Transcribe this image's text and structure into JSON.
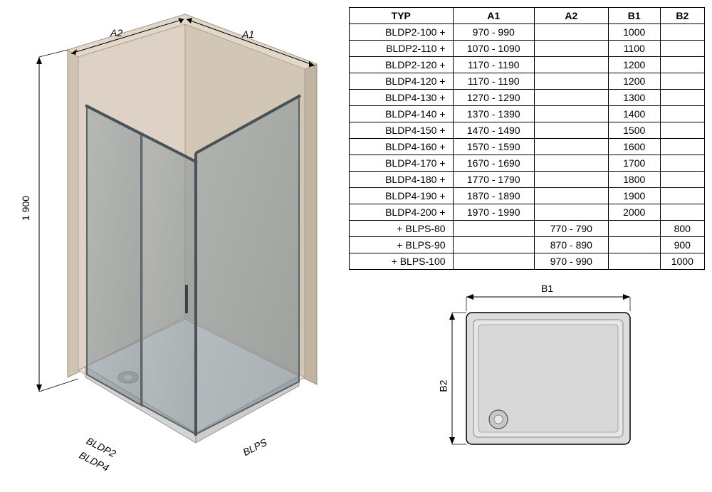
{
  "iso": {
    "height_label": "1 900",
    "top_left_dim": "A2",
    "top_right_dim": "A1",
    "bottom_left_label1": "BLDP2",
    "bottom_left_label2": "BLDP4",
    "bottom_right_label": "BLPS",
    "colors": {
      "wall_outer": "#c7b8a8",
      "wall_inner": "#ddd2c5",
      "floor": "#e8e0d4",
      "glass": "#7f8a8f",
      "glass_fill": "#b8c3c8",
      "frame": "#5a6266",
      "tray": "#e8e8e8",
      "dim_line": "#000000"
    }
  },
  "table": {
    "headers": [
      "TYP",
      "A1",
      "A2",
      "B1",
      "B2"
    ],
    "rows": [
      {
        "typ": "BLDP2-100 +",
        "a1": "970 - 990",
        "a2": "",
        "b1": "1000",
        "b2": ""
      },
      {
        "typ": "BLDP2-110 +",
        "a1": "1070 - 1090",
        "a2": "",
        "b1": "1100",
        "b2": ""
      },
      {
        "typ": "BLDP2-120 +",
        "a1": "1170 - 1190",
        "a2": "",
        "b1": "1200",
        "b2": ""
      },
      {
        "typ": "BLDP4-120 +",
        "a1": "1170 - 1190",
        "a2": "",
        "b1": "1200",
        "b2": ""
      },
      {
        "typ": "BLDP4-130 +",
        "a1": "1270 - 1290",
        "a2": "",
        "b1": "1300",
        "b2": ""
      },
      {
        "typ": "BLDP4-140 +",
        "a1": "1370 - 1390",
        "a2": "",
        "b1": "1400",
        "b2": ""
      },
      {
        "typ": "BLDP4-150 +",
        "a1": "1470 - 1490",
        "a2": "",
        "b1": "1500",
        "b2": ""
      },
      {
        "typ": "BLDP4-160 +",
        "a1": "1570 - 1590",
        "a2": "",
        "b1": "1600",
        "b2": ""
      },
      {
        "typ": "BLDP4-170 +",
        "a1": "1670 - 1690",
        "a2": "",
        "b1": "1700",
        "b2": ""
      },
      {
        "typ": "BLDP4-180 +",
        "a1": "1770 - 1790",
        "a2": "",
        "b1": "1800",
        "b2": ""
      },
      {
        "typ": "BLDP4-190 +",
        "a1": "1870 - 1890",
        "a2": "",
        "b1": "1900",
        "b2": ""
      },
      {
        "typ": "BLDP4-200 +",
        "a1": "1970 - 1990",
        "a2": "",
        "b1": "2000",
        "b2": ""
      },
      {
        "typ": "+ BLPS-80",
        "a1": "",
        "a2": "770 - 790",
        "b1": "",
        "b2": "800"
      },
      {
        "typ": "+ BLPS-90",
        "a1": "",
        "a2": "870 - 890",
        "b1": "",
        "b2": "900"
      },
      {
        "typ": "+ BLPS-100",
        "a1": "",
        "a2": "970 - 990",
        "b1": "",
        "b2": "1000"
      }
    ],
    "col_widths": [
      "140px",
      "110px",
      "100px",
      "70px",
      "60px"
    ]
  },
  "plan": {
    "top_dim": "B1",
    "left_dim": "B2",
    "colors": {
      "fill": "#d8d8d8",
      "stroke": "#000000",
      "highlight": "#f0f0f0"
    }
  }
}
